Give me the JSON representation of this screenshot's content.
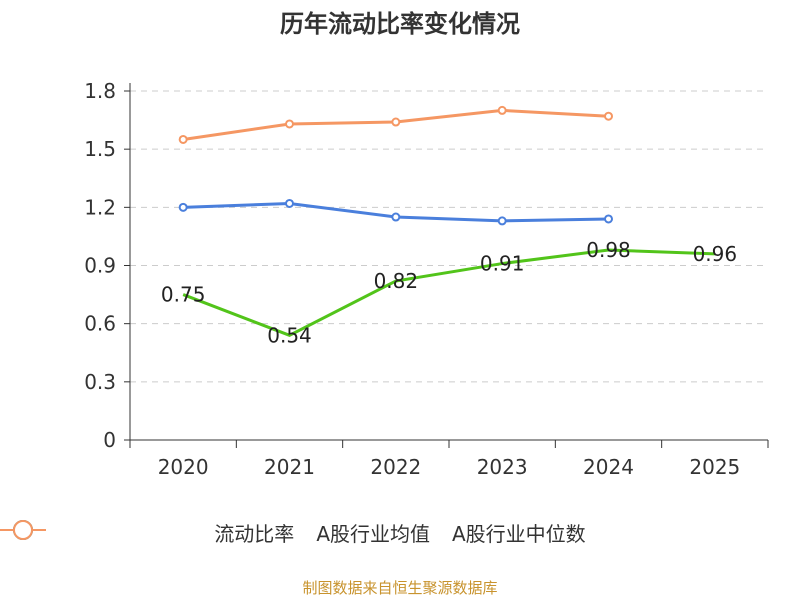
{
  "chart_data": {
    "type": "line",
    "title": "历年流动比率变化情况",
    "categories": [
      "2020",
      "2021",
      "2022",
      "2023",
      "2024",
      "2025"
    ],
    "ylim": [
      0,
      1.8
    ],
    "yticks": [
      "0",
      "0.3",
      "0.6",
      "0.9",
      "1.2",
      "1.5",
      "1.8"
    ],
    "grid": true,
    "legend_position": "bottom",
    "series": [
      {
        "name": "流动比率",
        "color": "#52c41a",
        "values": [
          0.75,
          0.54,
          0.82,
          0.91,
          0.98,
          0.96
        ],
        "labels": [
          "0.75",
          "0.54",
          "0.82",
          "0.91",
          "0.98",
          "0.96"
        ]
      },
      {
        "name": "A股行业均值",
        "color": "#4a7fdc",
        "values": [
          1.2,
          1.22,
          1.15,
          1.13,
          1.14,
          null
        ]
      },
      {
        "name": "A股行业中位数",
        "color": "#f59763",
        "values": [
          1.55,
          1.63,
          1.64,
          1.7,
          1.67,
          null
        ]
      }
    ]
  },
  "source": "制图数据来自恒生聚源数据库"
}
